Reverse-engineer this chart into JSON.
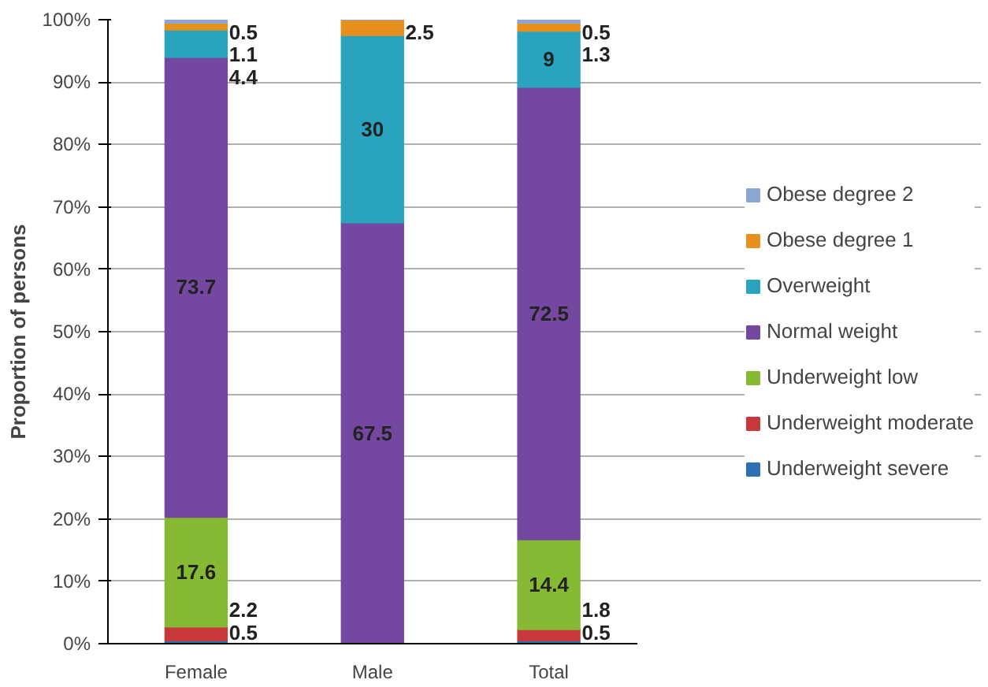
{
  "chart_data": {
    "type": "bar",
    "stacked": true,
    "ylabel": "Proportion of persons",
    "categories": [
      "Female",
      "Male",
      "Total"
    ],
    "series": [
      {
        "name": "Underweight severe",
        "color": "#2f6fb5",
        "values": [
          0.5,
          0,
          0.5
        ],
        "value_labels": [
          "0.5",
          null,
          "0.5"
        ]
      },
      {
        "name": "Underweight moderate",
        "color": "#c8383a",
        "values": [
          2.2,
          0,
          1.8
        ],
        "value_labels": [
          "2.2",
          null,
          "1.8"
        ]
      },
      {
        "name": "Underweight low",
        "color": "#86b934",
        "values": [
          17.6,
          0,
          14.4
        ],
        "value_labels": [
          "17.6",
          null,
          "14.4"
        ]
      },
      {
        "name": "Normal weight",
        "color": "#7448a0",
        "values": [
          73.7,
          67.5,
          72.5
        ],
        "value_labels": [
          "73.7",
          "67.5",
          "72.5"
        ]
      },
      {
        "name": "Overweight",
        "color": "#2aa3bf",
        "values": [
          4.4,
          30,
          9
        ],
        "value_labels": [
          "4.4",
          "30",
          "9"
        ]
      },
      {
        "name": "Obese degree 1",
        "color": "#e8901e",
        "values": [
          1.1,
          2.5,
          1.3
        ],
        "value_labels": [
          "1.1",
          "2.5",
          "1.3"
        ]
      },
      {
        "name": "Obese degree 2",
        "color": "#8aa6d4",
        "values": [
          0.5,
          0,
          0.5
        ],
        "value_labels": [
          "0.5",
          null,
          "0.5"
        ]
      }
    ],
    "ylim": [
      0,
      100
    ],
    "yticks": [
      {
        "value": 0,
        "label": "0%"
      },
      {
        "value": 10,
        "label": "10%"
      },
      {
        "value": 20,
        "label": "20%"
      },
      {
        "value": 30,
        "label": "30%"
      },
      {
        "value": 40,
        "label": "40%"
      },
      {
        "value": 50,
        "label": "50%"
      },
      {
        "value": 60,
        "label": "60%"
      },
      {
        "value": 70,
        "label": "70%"
      },
      {
        "value": 80,
        "label": "80%"
      },
      {
        "value": 90,
        "label": "90%"
      },
      {
        "value": 100,
        "label": "100%"
      }
    ],
    "grid": "y",
    "legend": "right"
  }
}
